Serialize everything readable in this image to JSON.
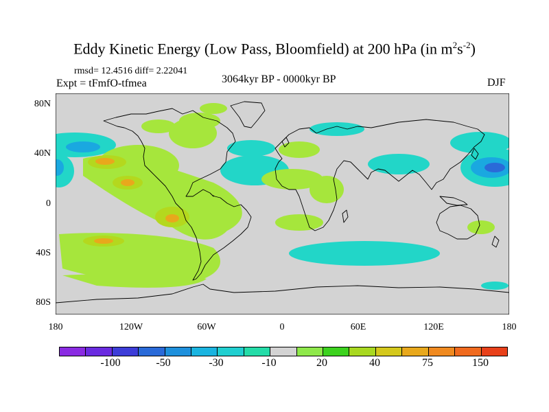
{
  "title": {
    "main": "Eddy Kinetic Energy (Low Pass, Bloomfield) at 200 hPa (in m",
    "sup1": "2",
    "mid": "s",
    "sup2": "-2",
    "end": ")"
  },
  "stats": "rmsd= 12.4516 diff= 2.22041",
  "experiment": "Expt = tFmfO-tfmea",
  "period": "3064kyr BP - 0000kyr BP",
  "season": "DJF",
  "map": {
    "lat_labels": [
      "80N",
      "40N",
      "0",
      "40S",
      "80S"
    ],
    "lon_labels": [
      "180",
      "120W",
      "60W",
      "0",
      "60E",
      "120E",
      "180"
    ],
    "background_color": "#d3d3d3"
  },
  "colorbar": {
    "colors": [
      "#8a2be2",
      "#6a2be0",
      "#3d3dd8",
      "#2a6ad8",
      "#1e90dc",
      "#1ab4e0",
      "#20cfd0",
      "#24dca8",
      "#d3d3d3",
      "#8ee84a",
      "#3cd21e",
      "#a8d820",
      "#d4c81c",
      "#e8a81c",
      "#f08a20",
      "#f06a1e",
      "#e8401a"
    ],
    "labels": [
      "-100",
      "-50",
      "-30",
      "-10",
      "20",
      "40",
      "75",
      "150"
    ]
  }
}
